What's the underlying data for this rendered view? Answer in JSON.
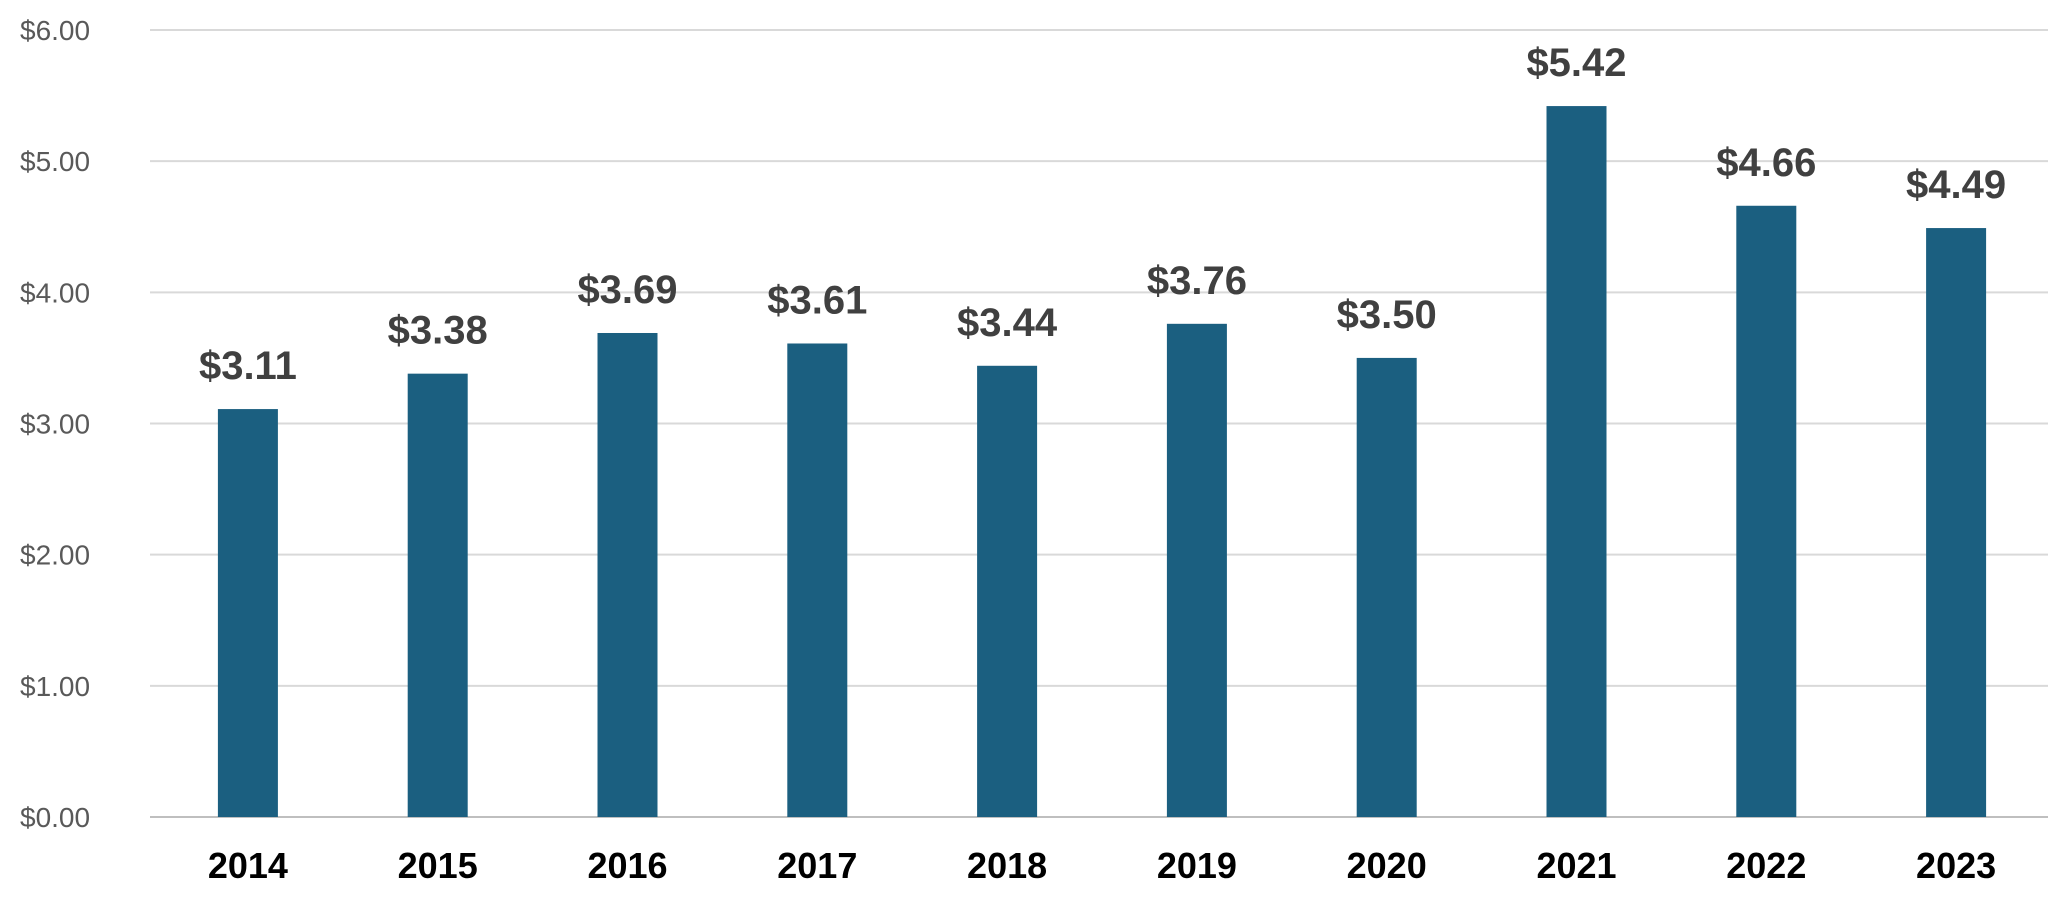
{
  "colors": {
    "bar": "#1b5f80",
    "grid": "#d9d9d9",
    "data_label": "#404040",
    "tick": "#595959"
  },
  "chart_data": {
    "type": "bar",
    "title": "",
    "xlabel": "",
    "ylabel": "",
    "categories": [
      "2014",
      "2015",
      "2016",
      "2017",
      "2018",
      "2019",
      "2020",
      "2021",
      "2022",
      "2023"
    ],
    "values": [
      3.11,
      3.38,
      3.69,
      3.61,
      3.44,
      3.76,
      3.5,
      5.42,
      4.66,
      4.49
    ],
    "data_labels": [
      "$3.11",
      "$3.38",
      "$3.69",
      "$3.61",
      "$3.44",
      "$3.76",
      "$3.50",
      "$5.42",
      "$4.66",
      "$4.49"
    ],
    "ylim": [
      0,
      6
    ],
    "yticks": [
      0,
      1,
      2,
      3,
      4,
      5,
      6
    ],
    "ytick_labels": [
      "$0.00",
      "$1.00",
      "$2.00",
      "$3.00",
      "$4.00",
      "$5.00",
      "$6.00"
    ],
    "grid": true,
    "legend": "none"
  }
}
